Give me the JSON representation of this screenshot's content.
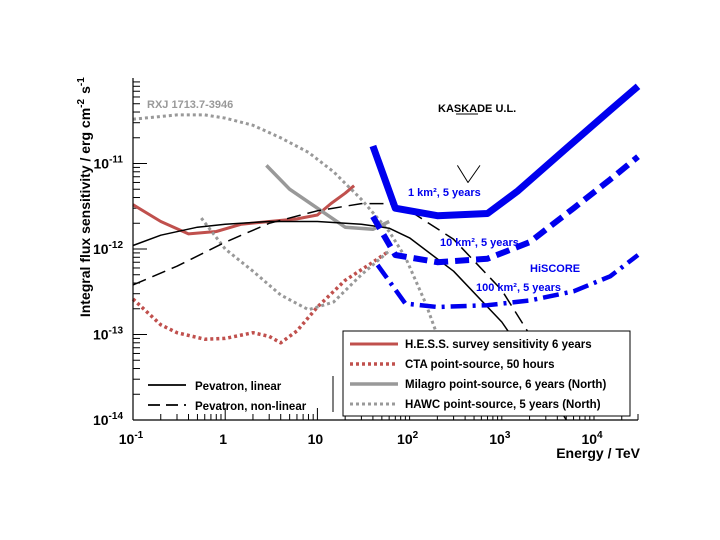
{
  "chart_data": {
    "type": "line",
    "title": "",
    "xlabel": "Energy / TeV",
    "ylabel": "Integral flux sensitivity / erg cm⁻² s⁻¹",
    "xscale": "log",
    "yscale": "log",
    "xlim": [
      0.1,
      30000
    ],
    "ylim": [
      1e-14,
      1e-10
    ],
    "x_ticks": [
      {
        "value": 0.1,
        "base": "10",
        "exp": "-1"
      },
      {
        "value": 1,
        "base": "1",
        "exp": ""
      },
      {
        "value": 10,
        "base": "10",
        "exp": ""
      },
      {
        "value": 100,
        "base": "10",
        "exp": "2"
      },
      {
        "value": 1000,
        "base": "10",
        "exp": "3"
      },
      {
        "value": 10000,
        "base": "10",
        "exp": "4"
      }
    ],
    "y_ticks": [
      {
        "value": 1e-11,
        "base": "10",
        "exp": "-11"
      },
      {
        "value": 1e-12,
        "base": "10",
        "exp": "-12"
      },
      {
        "value": 1e-13,
        "base": "10",
        "exp": "-13"
      },
      {
        "value": 1e-14,
        "base": "10",
        "exp": "-14"
      }
    ],
    "series": [
      {
        "name": "H.E.S.S. survey sensitivity 6 years",
        "color": "#c0504d",
        "style": "solid",
        "width": 3,
        "points": [
          [
            0.1,
            3.3e-12
          ],
          [
            0.2,
            2.1e-12
          ],
          [
            0.4,
            1.5e-12
          ],
          [
            0.8,
            1.6e-12
          ],
          [
            1.5,
            1.95e-12
          ],
          [
            3,
            2.1e-12
          ],
          [
            6,
            2.25e-12
          ],
          [
            10,
            2.5e-12
          ],
          [
            14,
            3.4e-12
          ],
          [
            20,
            4.5e-12
          ],
          [
            25,
            5.5e-12
          ]
        ]
      },
      {
        "name": "CTA point-source, 50 hours",
        "color": "#c0504d",
        "style": "dotted",
        "width": 3.5,
        "points": [
          [
            0.1,
            2.6e-13
          ],
          [
            0.2,
            1.3e-13
          ],
          [
            0.3,
            1.05e-13
          ],
          [
            0.6,
            8.8e-14
          ],
          [
            1,
            9e-14
          ],
          [
            2,
            1.05e-13
          ],
          [
            3,
            9.5e-14
          ],
          [
            4,
            8e-14
          ],
          [
            6,
            1.1e-13
          ],
          [
            10,
            2.1e-13
          ],
          [
            20,
            4.3e-13
          ],
          [
            40,
            7e-13
          ],
          [
            60,
            9.5e-13
          ]
        ]
      },
      {
        "name": "Milagro point-source, 6 years (North)",
        "color": "#999999",
        "style": "solid",
        "width": 3.5,
        "points": [
          [
            2.8,
            9.5e-12
          ],
          [
            5,
            5e-12
          ],
          [
            10,
            3e-12
          ],
          [
            20,
            1.8e-12
          ],
          [
            40,
            1.7e-12
          ],
          [
            60,
            2.1e-12
          ]
        ]
      },
      {
        "name": "HAWC point-source, 5 years (North)",
        "color": "#999999",
        "style": "dotted",
        "width": 3,
        "points": [
          [
            0.55,
            2.3e-12
          ],
          [
            1,
            1e-12
          ],
          [
            2,
            5.5e-13
          ],
          [
            4,
            2.9e-13
          ],
          [
            8,
            1.95e-13
          ],
          [
            15,
            2.4e-13
          ],
          [
            30,
            5e-13
          ],
          [
            60,
            9.5e-13
          ]
        ]
      },
      {
        "name": "RXJ 1713.7-3946",
        "color": "#999999",
        "style": "dotted",
        "width": 3,
        "points": [
          [
            0.1,
            3.3e-11
          ],
          [
            0.3,
            3.7e-11
          ],
          [
            0.6,
            3.7e-11
          ],
          [
            1,
            3.4e-11
          ],
          [
            2,
            2.8e-11
          ],
          [
            4,
            2e-11
          ],
          [
            8,
            1.35e-11
          ],
          [
            15,
            8e-12
          ],
          [
            30,
            3.8e-12
          ],
          [
            60,
            1.6e-12
          ],
          [
            90,
            8e-13
          ],
          [
            150,
            2.3e-13
          ],
          [
            250,
            5e-14
          ],
          [
            300,
            2.5e-14
          ]
        ]
      },
      {
        "name": "Pevatron, linear",
        "color": "#000000",
        "style": "solid",
        "width": 1.5,
        "points": [
          [
            0.1,
            1.1e-12
          ],
          [
            0.2,
            1.45e-12
          ],
          [
            0.5,
            1.8e-12
          ],
          [
            1,
            1.95e-12
          ],
          [
            3,
            2.1e-12
          ],
          [
            10,
            2.1e-12
          ],
          [
            30,
            1.95e-12
          ],
          [
            60,
            1.75e-12
          ],
          [
            100,
            1.35e-12
          ],
          [
            300,
            5.5e-13
          ],
          [
            1000,
            1.4e-13
          ],
          [
            3000,
            2.5e-14
          ],
          [
            5000,
            1e-14
          ]
        ]
      },
      {
        "name": "Pevatron, non-linear",
        "color": "#000000",
        "style": "dashed",
        "width": 1.5,
        "points": [
          [
            0.1,
            3.8e-13
          ],
          [
            0.3,
            6.3e-13
          ],
          [
            1,
            1.2e-12
          ],
          [
            3,
            2e-12
          ],
          [
            10,
            2.8e-12
          ],
          [
            30,
            3.4e-12
          ],
          [
            60,
            3.4e-12
          ],
          [
            100,
            2.8e-12
          ],
          [
            300,
            1.3e-12
          ],
          [
            1000,
            3.3e-13
          ],
          [
            2000,
            1e-13
          ],
          [
            3000,
            3e-14
          ],
          [
            3500,
            1.6e-14
          ]
        ]
      },
      {
        "name": "KASKADE U.L.",
        "color": "#000000",
        "style": "solid",
        "width": 1,
        "points": [
          [
            330,
            9.5e-12
          ],
          [
            430,
            6e-12
          ],
          [
            580,
            9.5e-12
          ]
        ]
      },
      {
        "name": "HiSCORE 1 km², 5 years",
        "color": "#0000ee",
        "style": "solid",
        "width": 7,
        "points": [
          [
            40,
            1.6e-11
          ],
          [
            70,
            3e-12
          ],
          [
            200,
            2.45e-12
          ],
          [
            700,
            2.6e-12
          ],
          [
            1500,
            4.8e-12
          ],
          [
            5000,
            1.5e-11
          ],
          [
            15000,
            4.2e-11
          ],
          [
            30000,
            8e-11
          ]
        ]
      },
      {
        "name": "HiSCORE 10 km², 5 years",
        "color": "#0000ee",
        "style": "dashed",
        "width": 6,
        "points": [
          [
            40,
            2.4e-12
          ],
          [
            70,
            8.5e-13
          ],
          [
            200,
            7e-13
          ],
          [
            700,
            7.7e-13
          ],
          [
            2000,
            1.2e-12
          ],
          [
            6000,
            3e-12
          ],
          [
            15000,
            6.5e-12
          ],
          [
            30000,
            1.2e-11
          ]
        ]
      },
      {
        "name": "HiSCORE 100 km², 5 years",
        "color": "#0000ee",
        "style": "dashdot",
        "width": 4.5,
        "points": [
          [
            45,
            6.5e-13
          ],
          [
            90,
            2.3e-13
          ],
          [
            200,
            2.1e-13
          ],
          [
            700,
            2.2e-13
          ],
          [
            2000,
            2.5e-13
          ],
          [
            6000,
            3.2e-13
          ],
          [
            15000,
            4.8e-13
          ],
          [
            30000,
            8.5e-13
          ]
        ]
      }
    ],
    "annotations": {
      "rxj": {
        "text": "RXJ 1713.7-3946",
        "color": "#999999"
      },
      "kaskade_pre": "KASKADE",
      "kaskade_ul": "KASKADE U.L.",
      "hiscore_1": {
        "text": "1 km², 5 years",
        "color": "#0000ee"
      },
      "hiscore_10": {
        "text": "10 km², 5 years",
        "color": "#0000ee"
      },
      "hiscore_100": {
        "text": "100 km², 5 years",
        "color": "#0000ee"
      },
      "hiscore": {
        "text": "HiSCORE",
        "color": "#0000ee"
      }
    },
    "legend": {
      "placement": "bottom",
      "entries": [
        {
          "label": "H.E.S.S. survey sensitivity 6 years",
          "series": 0
        },
        {
          "label": "CTA point-source, 50 hours",
          "series": 1
        },
        {
          "label": "Milagro point-source, 6 years (North)",
          "series": 2
        },
        {
          "label": "HAWC point-source, 5 years (North)",
          "series": 3
        }
      ],
      "entries_left": [
        {
          "label": "Pevatron, linear",
          "series": 5
        },
        {
          "label": "Pevatron, non-linear",
          "series": 6
        }
      ]
    }
  }
}
